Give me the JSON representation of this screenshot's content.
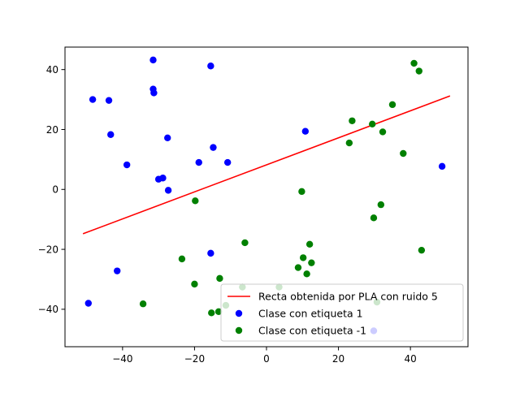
{
  "chart_data": {
    "type": "scatter",
    "title": "",
    "xlabel": "",
    "ylabel": "",
    "xlim": [
      -56,
      56
    ],
    "ylim": [
      -52.5,
      47.5
    ],
    "xticks": [
      -40,
      -20,
      0,
      20,
      40
    ],
    "yticks": [
      -40,
      -20,
      0,
      20,
      40
    ],
    "xtick_labels": [
      "−40",
      "−20",
      "0",
      "20",
      "40"
    ],
    "ytick_labels": [
      "−40",
      "−20",
      "0",
      "20",
      "40"
    ],
    "grid": false,
    "legend_position": "lower-right",
    "line": {
      "name": "Recta obtenida por PLA con ruido 5",
      "color": "#ff0000",
      "points": [
        [
          -51,
          -14.8
        ],
        [
          51,
          31.2
        ]
      ]
    },
    "series": [
      {
        "name": "Clase con etiqueta 1",
        "color": "#0000ff",
        "points": [
          [
            -31.5,
            43.2
          ],
          [
            -15.5,
            41.2
          ],
          [
            -31.5,
            33.5
          ],
          [
            -31.3,
            32.2
          ],
          [
            -48.3,
            30.0
          ],
          [
            -43.8,
            29.7
          ],
          [
            -43.3,
            18.3
          ],
          [
            -27.5,
            17.2
          ],
          [
            10.8,
            19.4
          ],
          [
            -14.8,
            14.0
          ],
          [
            -38.8,
            8.2
          ],
          [
            -18.8,
            9.0
          ],
          [
            -10.8,
            9.0
          ],
          [
            -30.0,
            3.4
          ],
          [
            -28.8,
            3.8
          ],
          [
            -27.3,
            -0.3
          ],
          [
            48.8,
            7.7
          ],
          [
            -15.5,
            -21.3
          ],
          [
            -41.5,
            -27.2
          ],
          [
            -49.5,
            -38.0
          ],
          [
            29.8,
            -47.2
          ]
        ]
      },
      {
        "name": "Clase con etiqueta -1",
        "color": "#008000",
        "points": [
          [
            41.0,
            42.1
          ],
          [
            42.4,
            39.5
          ],
          [
            35.0,
            28.3
          ],
          [
            23.8,
            22.9
          ],
          [
            29.4,
            21.8
          ],
          [
            32.3,
            19.2
          ],
          [
            23.0,
            15.5
          ],
          [
            38.0,
            12.0
          ],
          [
            9.8,
            -0.7
          ],
          [
            -19.8,
            -3.8
          ],
          [
            31.8,
            -5.1
          ],
          [
            29.8,
            -9.5
          ],
          [
            -6.0,
            -17.8
          ],
          [
            12.0,
            -18.3
          ],
          [
            43.1,
            -20.3
          ],
          [
            10.2,
            -22.8
          ],
          [
            -23.5,
            -23.2
          ],
          [
            12.5,
            -24.5
          ],
          [
            8.8,
            -26.1
          ],
          [
            11.2,
            -28.2
          ],
          [
            -13.0,
            -29.7
          ],
          [
            -20.0,
            -31.6
          ],
          [
            -6.7,
            -32.6
          ],
          [
            3.5,
            -32.6
          ],
          [
            -34.3,
            -38.2
          ],
          [
            -11.3,
            -38.7
          ],
          [
            -15.3,
            -41.2
          ],
          [
            -13.3,
            -40.8
          ],
          [
            30.7,
            -37.6
          ]
        ]
      }
    ]
  }
}
